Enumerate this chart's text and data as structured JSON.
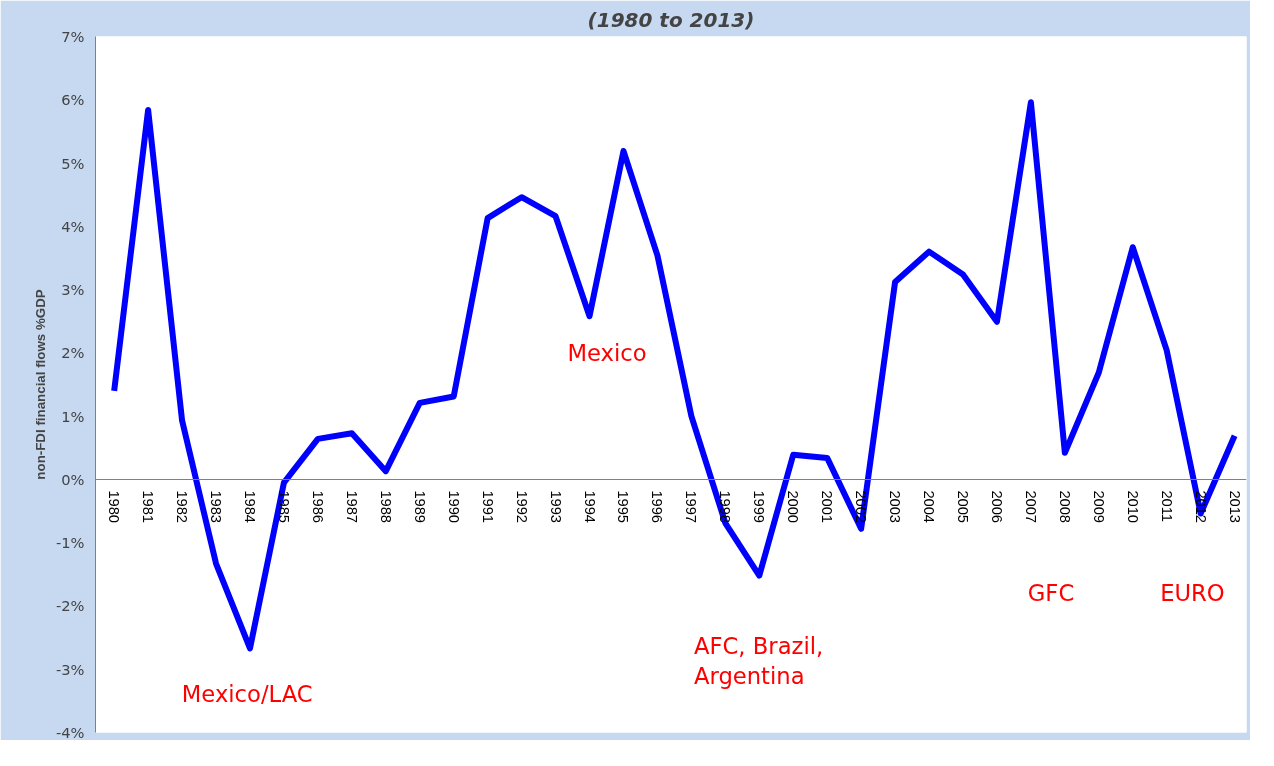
{
  "chart_data": {
    "type": "line",
    "title": "(1980 to 2013)",
    "ylabel": "non-FDI financial flows %GDP",
    "categories": [
      "1980",
      "1981",
      "1982",
      "1983",
      "1984",
      "1985",
      "1986",
      "1987",
      "1988",
      "1989",
      "1990",
      "1991",
      "1992",
      "1993",
      "1994",
      "1995",
      "1996",
      "1997",
      "1998",
      "1999",
      "2000",
      "2001",
      "2002",
      "2003",
      "2004",
      "2005",
      "2006",
      "2007",
      "2008",
      "2009",
      "2010",
      "2011",
      "2012",
      "2013"
    ],
    "series": [
      {
        "color": "#0000ff",
        "values": [
          1.4,
          5.84,
          0.93,
          -1.33,
          -2.67,
          -0.05,
          0.64,
          0.73,
          0.13,
          1.21,
          1.31,
          4.13,
          4.46,
          4.16,
          2.58,
          5.19,
          3.54,
          1.0,
          -0.69,
          -1.52,
          0.39,
          0.34,
          -0.78,
          3.12,
          3.6,
          3.24,
          2.49,
          5.96,
          0.42,
          1.69,
          3.67,
          2.04,
          -0.54,
          0.69
        ]
      }
    ],
    "ylim": [
      -4,
      7
    ],
    "yticks": [
      {
        "value": -4,
        "label": "-4%"
      },
      {
        "value": -3,
        "label": "-3%"
      },
      {
        "value": -2,
        "label": "-2%"
      },
      {
        "value": -1,
        "label": "-1%"
      },
      {
        "value": 0,
        "label": "0%"
      },
      {
        "value": 1,
        "label": "1%"
      },
      {
        "value": 2,
        "label": "2%"
      },
      {
        "value": 3,
        "label": "3%"
      },
      {
        "value": 4,
        "label": "4%"
      },
      {
        "value": 5,
        "label": "5%"
      },
      {
        "value": 6,
        "label": "6%"
      },
      {
        "value": 7,
        "label": "7%"
      }
    ],
    "annotations": [
      "Mexico/LAC",
      "Mexico",
      "AFC, Brazil,\nArgentina",
      "GFC",
      "EURO"
    ],
    "grid": false,
    "marker": "none",
    "line_style": "solid"
  }
}
